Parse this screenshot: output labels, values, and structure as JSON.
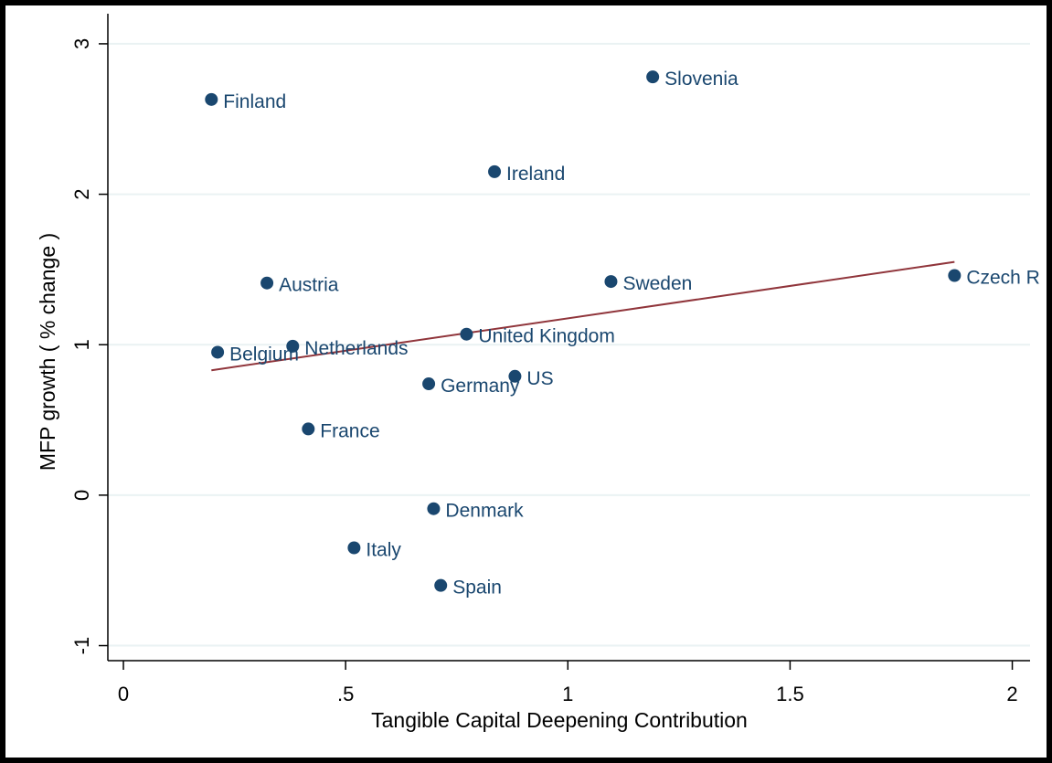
{
  "chart_data": {
    "type": "scatter",
    "x_label": "Tangible Capital Deepening Contribution",
    "y_label": "MFP growth ( % change )",
    "labels": [
      "Finland",
      "Slovenia",
      "Ireland",
      "Austria",
      "Sweden",
      "Czech R",
      "Belgium",
      "Netherlands",
      "United Kingdom",
      "Germany",
      "US",
      "France",
      "Denmark",
      "Italy",
      "Spain"
    ],
    "x": [
      0.198,
      1.191,
      0.835,
      0.323,
      1.097,
      1.87,
      0.212,
      0.381,
      0.772,
      0.687,
      0.881,
      0.416,
      0.698,
      0.519,
      0.714
    ],
    "values": [
      2.63,
      2.78,
      2.15,
      1.41,
      1.42,
      1.46,
      0.95,
      0.99,
      1.07,
      0.74,
      0.79,
      0.44,
      -0.09,
      -0.35,
      -0.6
    ],
    "color": "#1a476f",
    "fit_line": {
      "x": [
        0.198,
        1.87
      ],
      "y": [
        0.83,
        1.55
      ],
      "color": "#90353b"
    },
    "xlim": [
      -0.035,
      2.04
    ],
    "ylim": [
      -1.1,
      3.2
    ],
    "xticks": [
      0,
      {
        "value": 0.5,
        "label": ".5"
      },
      1,
      1.5,
      2
    ],
    "yticks": [
      -1,
      0,
      1,
      2,
      3
    ],
    "grid": true
  }
}
